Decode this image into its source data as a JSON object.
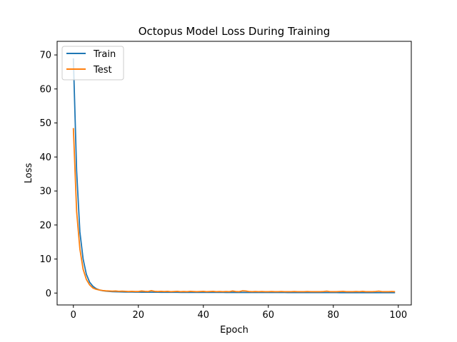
{
  "chart_data": {
    "type": "line",
    "title": "Octopus Model Loss During Training",
    "xlabel": "Epoch",
    "ylabel": "Loss",
    "xlim": [
      -5,
      104
    ],
    "ylim": [
      -3.5,
      74
    ],
    "xticks": [
      0,
      20,
      40,
      60,
      80,
      100
    ],
    "yticks": [
      0,
      10,
      20,
      30,
      40,
      50,
      60,
      70
    ],
    "grid": false,
    "legend": "upper-left",
    "series": [
      {
        "name": "Train",
        "color": "#1f77b4",
        "x": [
          0,
          1,
          2,
          3,
          4,
          5,
          6,
          7,
          8,
          9,
          10,
          11,
          12,
          13,
          14,
          15,
          16,
          17,
          18,
          19,
          20,
          21,
          22,
          23,
          24,
          25,
          26,
          27,
          28,
          29,
          30,
          31,
          32,
          33,
          34,
          35,
          36,
          37,
          38,
          39,
          40,
          41,
          42,
          43,
          44,
          45,
          46,
          47,
          48,
          49,
          50,
          51,
          52,
          53,
          54,
          55,
          56,
          57,
          58,
          59,
          60,
          61,
          62,
          63,
          64,
          65,
          66,
          67,
          68,
          69,
          70,
          71,
          72,
          73,
          74,
          75,
          76,
          77,
          78,
          79,
          80,
          81,
          82,
          83,
          84,
          85,
          86,
          87,
          88,
          89,
          90,
          91,
          92,
          93,
          94,
          95,
          96,
          97,
          98,
          99
        ],
        "y": [
          69,
          36,
          18,
          10,
          5.5,
          3.2,
          2.0,
          1.3,
          0.9,
          0.7,
          0.55,
          0.48,
          0.42,
          0.38,
          0.35,
          0.33,
          0.31,
          0.3,
          0.29,
          0.28,
          0.27,
          0.26,
          0.26,
          0.25,
          0.25,
          0.24,
          0.24,
          0.23,
          0.23,
          0.23,
          0.22,
          0.22,
          0.22,
          0.21,
          0.21,
          0.21,
          0.21,
          0.2,
          0.2,
          0.2,
          0.2,
          0.2,
          0.19,
          0.19,
          0.19,
          0.19,
          0.19,
          0.18,
          0.18,
          0.18,
          0.18,
          0.18,
          0.18,
          0.17,
          0.17,
          0.17,
          0.17,
          0.17,
          0.17,
          0.16,
          0.16,
          0.16,
          0.16,
          0.16,
          0.16,
          0.16,
          0.15,
          0.15,
          0.15,
          0.15,
          0.15,
          0.15,
          0.15,
          0.15,
          0.14,
          0.14,
          0.14,
          0.14,
          0.14,
          0.14,
          0.14,
          0.14,
          0.13,
          0.13,
          0.13,
          0.13,
          0.13,
          0.13,
          0.13,
          0.13,
          0.13,
          0.12,
          0.12,
          0.12,
          0.12,
          0.12,
          0.12,
          0.12,
          0.12,
          0.12
        ]
      },
      {
        "name": "Test",
        "color": "#ff7f0e",
        "x": [
          0,
          1,
          2,
          3,
          4,
          5,
          6,
          7,
          8,
          9,
          10,
          11,
          12,
          13,
          14,
          15,
          16,
          17,
          18,
          19,
          20,
          21,
          22,
          23,
          24,
          25,
          26,
          27,
          28,
          29,
          30,
          31,
          32,
          33,
          34,
          35,
          36,
          37,
          38,
          39,
          40,
          41,
          42,
          43,
          44,
          45,
          46,
          47,
          48,
          49,
          50,
          51,
          52,
          53,
          54,
          55,
          56,
          57,
          58,
          59,
          60,
          61,
          62,
          63,
          64,
          65,
          66,
          67,
          68,
          69,
          70,
          71,
          72,
          73,
          74,
          75,
          76,
          77,
          78,
          79,
          80,
          81,
          82,
          83,
          84,
          85,
          86,
          87,
          88,
          89,
          90,
          91,
          92,
          93,
          94,
          95,
          96,
          97,
          98,
          99
        ],
        "y": [
          48.5,
          24,
          13,
          7,
          4,
          2.4,
          1.5,
          1.1,
          0.9,
          0.75,
          0.65,
          0.6,
          0.55,
          0.6,
          0.5,
          0.55,
          0.5,
          0.45,
          0.5,
          0.45,
          0.45,
          0.6,
          0.5,
          0.45,
          0.7,
          0.5,
          0.45,
          0.5,
          0.45,
          0.5,
          0.4,
          0.45,
          0.5,
          0.4,
          0.45,
          0.4,
          0.5,
          0.45,
          0.4,
          0.45,
          0.5,
          0.4,
          0.45,
          0.5,
          0.4,
          0.45,
          0.4,
          0.45,
          0.4,
          0.6,
          0.45,
          0.4,
          0.65,
          0.6,
          0.45,
          0.4,
          0.45,
          0.4,
          0.45,
          0.4,
          0.4,
          0.45,
          0.4,
          0.4,
          0.45,
          0.4,
          0.4,
          0.4,
          0.45,
          0.4,
          0.4,
          0.4,
          0.45,
          0.4,
          0.4,
          0.4,
          0.4,
          0.45,
          0.55,
          0.4,
          0.4,
          0.4,
          0.45,
          0.5,
          0.4,
          0.4,
          0.4,
          0.45,
          0.4,
          0.5,
          0.4,
          0.4,
          0.4,
          0.45,
          0.55,
          0.4,
          0.4,
          0.4,
          0.45,
          0.4
        ]
      }
    ]
  }
}
